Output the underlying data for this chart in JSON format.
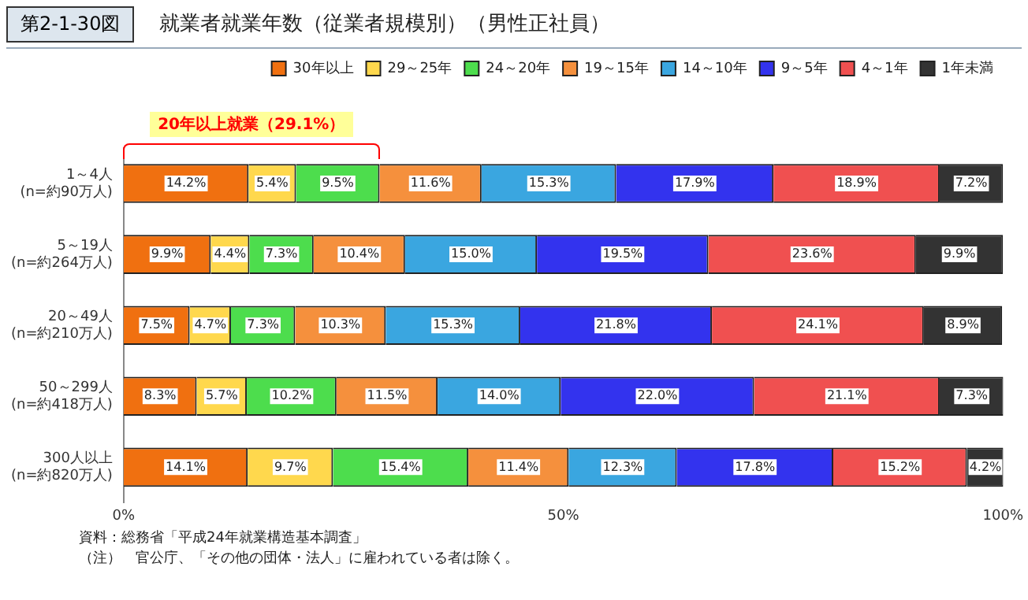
{
  "chart_data": {
    "type": "bar",
    "orientation": "horizontal",
    "stacked": true,
    "title": "第2-1-30図",
    "subtitle": "就業者就業年数（従業者規模別）（男性正社員）",
    "categories": [
      "1～4人\n(n=約90万人)",
      "5～19人\n(n=約264万人)",
      "20～49人\n(n=約210万人)",
      "50～299人\n(n=約418万人)",
      "300人以上\n(n=約820万人)"
    ],
    "series": [
      {
        "name": "30年以上",
        "color": "#f07010",
        "values": [
          14.2,
          9.9,
          7.5,
          8.3,
          14.1
        ],
        "value_labels": [
          "14.2%",
          "9.9%",
          "7.5%",
          "8.3%",
          "14.1%"
        ]
      },
      {
        "name": "29～25年",
        "color": "#ffd84d",
        "values": [
          5.4,
          4.4,
          4.7,
          5.7,
          9.7
        ],
        "value_labels": [
          "5.4%",
          "4.4%",
          "4.7%",
          "5.7%",
          "9.7%"
        ]
      },
      {
        "name": "24～20年",
        "color": "#4ddd4d",
        "values": [
          9.5,
          7.3,
          7.3,
          10.2,
          15.4
        ],
        "value_labels": [
          "9.5%",
          "7.3%",
          "7.3%",
          "10.2%",
          "15.4%"
        ]
      },
      {
        "name": "19～15年",
        "color": "#f5903d",
        "values": [
          11.6,
          10.4,
          10.3,
          11.5,
          11.4
        ],
        "value_labels": [
          "11.6%",
          "10.4%",
          "10.3%",
          "11.5%",
          "11.4%"
        ]
      },
      {
        "name": "14～10年",
        "color": "#3aa6e0",
        "values": [
          15.3,
          15.0,
          15.3,
          14.0,
          12.3
        ],
        "value_labels": [
          "15.3%",
          "15.0%",
          "15.3%",
          "14.0%",
          "12.3%"
        ]
      },
      {
        "name": "9～5年",
        "color": "#3333ee",
        "values": [
          17.9,
          19.5,
          21.8,
          22.0,
          17.8
        ],
        "value_labels": [
          "17.9%",
          "19.5%",
          "21.8%",
          "22.0%",
          "17.8%"
        ]
      },
      {
        "name": "4～1年",
        "color": "#f05050",
        "values": [
          18.9,
          23.6,
          24.1,
          21.1,
          15.2
        ],
        "value_labels": [
          "18.9%",
          "23.6%",
          "24.1%",
          "21.1%",
          "15.2%"
        ]
      },
      {
        "name": "1年未満",
        "color": "#333333",
        "values": [
          7.2,
          9.9,
          8.9,
          7.3,
          4.2
        ],
        "value_labels": [
          "7.2%",
          "9.9%",
          "8.9%",
          "7.3%",
          "4.2%"
        ]
      }
    ],
    "xlim": [
      0,
      100
    ],
    "xticks": [
      {
        "value": 0,
        "label": "0%"
      },
      {
        "value": 50,
        "label": "50%"
      },
      {
        "value": 100,
        "label": "100%"
      }
    ],
    "grid": false,
    "legend": "top",
    "annotations": [
      "20年以上就業（29.1%）",
      "資料：総務省「平成24年就業構造基本調査」",
      "（注）　官公庁、「その他の団体・法人」に雇われている者は除く。"
    ]
  }
}
